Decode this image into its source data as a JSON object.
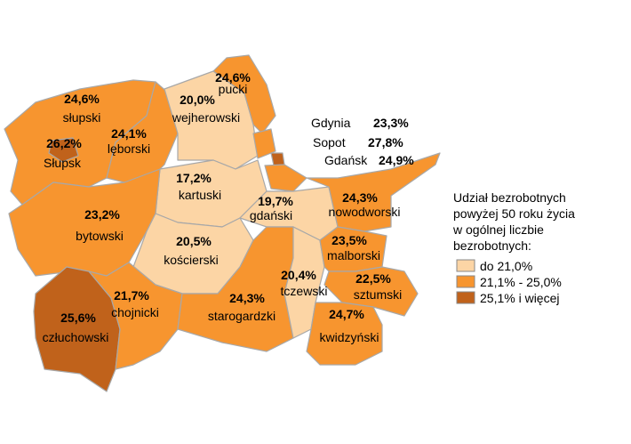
{
  "chart_data": {
    "type": "choropleth",
    "regions": [
      {
        "name": "słupski",
        "value": 24.6,
        "value_label": "24,6%",
        "color": "#f7952f"
      },
      {
        "name": "Słupsk",
        "value": 26.2,
        "value_label": "26,2%",
        "color": "#c0621b"
      },
      {
        "name": "lęborski",
        "value": 24.1,
        "value_label": "24,1%",
        "color": "#f7952f"
      },
      {
        "name": "wejherowski",
        "value": 20.0,
        "value_label": "20,0%",
        "color": "#fcd5a5"
      },
      {
        "name": "pucki",
        "value": 24.6,
        "value_label": "24,6%",
        "color": "#f7952f"
      },
      {
        "name": "Gdynia",
        "value": 23.3,
        "value_label": "23,3%",
        "color": "#f7952f"
      },
      {
        "name": "Sopot",
        "value": 27.8,
        "value_label": "27,8%",
        "color": "#c0621b"
      },
      {
        "name": "Gdańsk",
        "value": 24.9,
        "value_label": "24,9%",
        "color": "#f7952f"
      },
      {
        "name": "kartuski",
        "value": 17.2,
        "value_label": "17,2%",
        "color": "#fcd5a5"
      },
      {
        "name": "bytowski",
        "value": 23.2,
        "value_label": "23,2%",
        "color": "#f7952f"
      },
      {
        "name": "gdański",
        "value": 19.7,
        "value_label": "19,7%",
        "color": "#fcd5a5"
      },
      {
        "name": "nowodworski",
        "value": 24.3,
        "value_label": "24,3%",
        "color": "#f7952f"
      },
      {
        "name": "kościerski",
        "value": 20.5,
        "value_label": "20,5%",
        "color": "#fcd5a5"
      },
      {
        "name": "człuchowski",
        "value": 25.6,
        "value_label": "25,6%",
        "color": "#c0621b"
      },
      {
        "name": "chojnicki",
        "value": 21.7,
        "value_label": "21,7%",
        "color": "#f7952f"
      },
      {
        "name": "starogardzki",
        "value": 24.3,
        "value_label": "24,3%",
        "color": "#f7952f"
      },
      {
        "name": "tczewski",
        "value": 20.4,
        "value_label": "20,4%",
        "color": "#fcd5a5"
      },
      {
        "name": "malborski",
        "value": 23.5,
        "value_label": "23,5%",
        "color": "#f7952f"
      },
      {
        "name": "sztumski",
        "value": 22.5,
        "value_label": "22,5%",
        "color": "#f7952f"
      },
      {
        "name": "kwidzyński",
        "value": 24.7,
        "value_label": "24,7%",
        "color": "#f7952f"
      }
    ],
    "legend": {
      "title": [
        "Udział bezrobotnych",
        "powyżej 50 roku życia",
        "w ogólnej liczbie",
        "bezrobotnych:"
      ],
      "entries": [
        {
          "label": "do 21,0%",
          "color": "#fcd5a5"
        },
        {
          "label": "21,1% - 25,0%",
          "color": "#f7952f"
        },
        {
          "label": "25,1% i więcej",
          "color": "#c0621b"
        }
      ]
    }
  }
}
